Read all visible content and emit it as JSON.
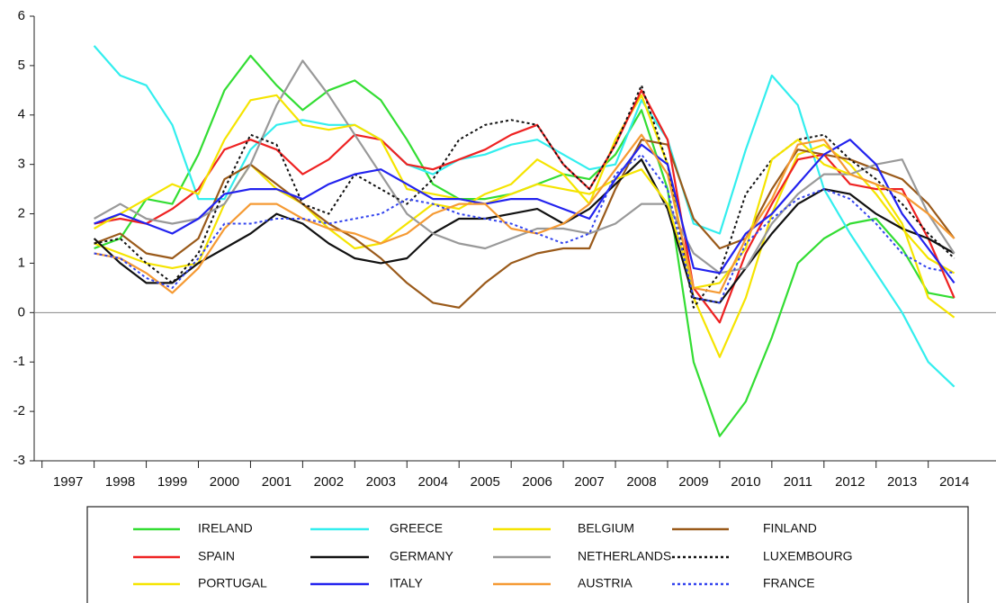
{
  "chart_data": {
    "type": "line",
    "x": [
      1998.0,
      1998.5,
      1999.0,
      1999.5,
      2000.0,
      2000.5,
      2001.0,
      2001.5,
      2002.0,
      2002.5,
      2003.0,
      2003.5,
      2004.0,
      2004.5,
      2005.0,
      2005.5,
      2006.0,
      2006.5,
      2007.0,
      2007.5,
      2008.0,
      2008.5,
      2009.0,
      2009.5,
      2010.0,
      2010.5,
      2011.0,
      2011.5,
      2012.0,
      2012.5,
      2013.0,
      2013.5,
      2014.0,
      2014.5
    ],
    "xlim": [
      1996.85,
      2015.3
    ],
    "xticks": [
      {
        "value": 1997,
        "label": "1997"
      },
      {
        "value": 1998,
        "label": "1998"
      },
      {
        "value": 1999,
        "label": "1999"
      },
      {
        "value": 2000,
        "label": "2000"
      },
      {
        "value": 2001,
        "label": "2001"
      },
      {
        "value": 2002,
        "label": "2002"
      },
      {
        "value": 2003,
        "label": "2003"
      },
      {
        "value": 2004,
        "label": "2004"
      },
      {
        "value": 2005,
        "label": "2005"
      },
      {
        "value": 2006,
        "label": "2006"
      },
      {
        "value": 2007,
        "label": "2007"
      },
      {
        "value": 2008,
        "label": "2008"
      },
      {
        "value": 2009,
        "label": "2009"
      },
      {
        "value": 2010,
        "label": "2010"
      },
      {
        "value": 2011,
        "label": "2011"
      },
      {
        "value": 2012,
        "label": "2012"
      },
      {
        "value": 2013,
        "label": "2013"
      },
      {
        "value": 2014,
        "label": "2014"
      }
    ],
    "ylim": [
      -3,
      6
    ],
    "yticks": [
      -3,
      -2,
      -1,
      0,
      1,
      2,
      3,
      4,
      5,
      6
    ],
    "series": [
      {
        "name": "IRELAND",
        "color": "#33dd33",
        "values": [
          1.3,
          1.5,
          2.3,
          2.2,
          3.2,
          4.5,
          5.2,
          4.6,
          4.1,
          4.5,
          4.7,
          4.3,
          3.5,
          2.6,
          2.3,
          2.3,
          2.4,
          2.6,
          2.8,
          2.7,
          3.2,
          4.1,
          2.5,
          -1.0,
          -2.5,
          -1.8,
          -0.5,
          1.0,
          1.5,
          1.8,
          1.9,
          1.3,
          0.4,
          0.3
        ]
      },
      {
        "name": "GREECE",
        "color": "#33eeee",
        "values": [
          5.4,
          4.8,
          4.6,
          3.8,
          2.3,
          2.3,
          3.3,
          3.8,
          3.9,
          3.8,
          3.8,
          3.5,
          3.0,
          2.8,
          3.1,
          3.2,
          3.4,
          3.5,
          3.2,
          2.9,
          3.0,
          4.3,
          3.5,
          1.8,
          1.6,
          3.3,
          4.8,
          4.2,
          2.5,
          1.6,
          0.8,
          0.0,
          -1.0,
          -1.5
        ]
      },
      {
        "name": "BELGIUM",
        "color": "#f5e400",
        "values": [
          1.4,
          1.2,
          1.0,
          0.9,
          1.0,
          2.2,
          3.0,
          2.5,
          2.2,
          1.7,
          1.3,
          1.4,
          1.8,
          2.2,
          2.1,
          2.4,
          2.6,
          3.1,
          2.8,
          2.2,
          3.5,
          4.4,
          3.0,
          0.3,
          -0.9,
          0.3,
          2.0,
          3.2,
          3.4,
          3.0,
          2.4,
          1.7,
          1.1,
          0.8
        ]
      },
      {
        "name": "FINLAND",
        "color": "#9a5a1a",
        "values": [
          1.4,
          1.6,
          1.2,
          1.1,
          1.5,
          2.7,
          3.0,
          2.6,
          2.2,
          1.8,
          1.5,
          1.1,
          0.6,
          0.2,
          0.1,
          0.6,
          1.0,
          1.2,
          1.3,
          1.3,
          2.5,
          3.5,
          3.4,
          1.9,
          1.3,
          1.5,
          2.5,
          3.3,
          3.2,
          3.1,
          2.9,
          2.7,
          2.2,
          1.5
        ]
      },
      {
        "name": "SPAIN",
        "color": "#ee2222",
        "values": [
          1.8,
          1.9,
          1.8,
          2.1,
          2.5,
          3.3,
          3.5,
          3.3,
          2.8,
          3.1,
          3.6,
          3.5,
          3.0,
          2.9,
          3.1,
          3.3,
          3.6,
          3.8,
          3.0,
          2.5,
          3.4,
          4.5,
          3.5,
          0.5,
          -0.2,
          1.2,
          2.2,
          3.1,
          3.2,
          2.6,
          2.5,
          2.5,
          1.5,
          0.3
        ]
      },
      {
        "name": "GERMANY",
        "color": "#111111",
        "values": [
          1.5,
          1.0,
          0.6,
          0.6,
          1.0,
          1.3,
          1.6,
          2.0,
          1.8,
          1.4,
          1.1,
          1.0,
          1.1,
          1.6,
          1.9,
          1.9,
          2.0,
          2.1,
          1.8,
          2.1,
          2.6,
          3.1,
          2.1,
          0.3,
          0.2,
          0.9,
          1.6,
          2.2,
          2.5,
          2.4,
          2.0,
          1.7,
          1.5,
          1.2
        ]
      },
      {
        "name": "NETHERLANDS",
        "color": "#999999",
        "values": [
          1.9,
          2.2,
          1.9,
          1.8,
          1.9,
          2.2,
          3.0,
          4.2,
          5.1,
          4.4,
          3.6,
          2.8,
          2.0,
          1.6,
          1.4,
          1.3,
          1.5,
          1.7,
          1.7,
          1.6,
          1.8,
          2.2,
          2.2,
          1.2,
          0.8,
          0.9,
          1.8,
          2.4,
          2.8,
          2.8,
          3.0,
          3.1,
          2.0,
          1.2
        ]
      },
      {
        "name": "LUXEMBOURG",
        "color": "#111111",
        "dashed": true,
        "values": [
          1.4,
          1.5,
          1.0,
          0.6,
          1.2,
          2.5,
          3.6,
          3.4,
          2.2,
          2.0,
          2.8,
          2.5,
          2.2,
          2.7,
          3.5,
          3.8,
          3.9,
          3.8,
          3.0,
          2.5,
          3.4,
          4.6,
          3.0,
          0.1,
          0.8,
          2.4,
          3.1,
          3.5,
          3.6,
          3.1,
          2.7,
          2.2,
          1.6,
          1.1
        ]
      },
      {
        "name": "PORTUGAL",
        "color": "#f5e400",
        "values": [
          1.7,
          2.0,
          2.3,
          2.6,
          2.4,
          3.5,
          4.3,
          4.4,
          3.8,
          3.7,
          3.8,
          3.5,
          2.5,
          2.4,
          2.3,
          2.2,
          2.4,
          2.6,
          2.5,
          2.4,
          2.7,
          2.9,
          2.2,
          0.5,
          0.6,
          1.3,
          3.1,
          3.5,
          3.0,
          2.8,
          2.6,
          1.8,
          0.3,
          -0.1
        ]
      },
      {
        "name": "ITALY",
        "color": "#2222ee",
        "values": [
          1.8,
          2.0,
          1.8,
          1.6,
          1.9,
          2.4,
          2.5,
          2.5,
          2.3,
          2.6,
          2.8,
          2.9,
          2.6,
          2.3,
          2.3,
          2.2,
          2.3,
          2.3,
          2.1,
          1.9,
          2.7,
          3.4,
          3.0,
          0.9,
          0.8,
          1.6,
          2.0,
          2.6,
          3.2,
          3.5,
          3.0,
          2.0,
          1.3,
          0.6
        ]
      },
      {
        "name": "AUSTRIA",
        "color": "#f59a33",
        "values": [
          1.2,
          1.1,
          0.8,
          0.4,
          0.9,
          1.7,
          2.2,
          2.2,
          1.9,
          1.7,
          1.6,
          1.4,
          1.6,
          2.0,
          2.2,
          2.2,
          1.7,
          1.6,
          1.8,
          2.2,
          2.9,
          3.6,
          2.8,
          0.5,
          0.4,
          1.5,
          2.3,
          3.4,
          3.5,
          2.8,
          2.6,
          2.4,
          2.0,
          1.5
        ]
      },
      {
        "name": "FRANCE",
        "color": "#3344ee",
        "dashed": true,
        "values": [
          1.2,
          1.1,
          0.7,
          0.5,
          1.1,
          1.8,
          1.8,
          1.9,
          1.9,
          1.8,
          1.9,
          2.0,
          2.3,
          2.2,
          2.0,
          1.9,
          1.8,
          1.6,
          1.4,
          1.6,
          2.8,
          3.2,
          2.5,
          0.3,
          0.2,
          1.4,
          1.9,
          2.3,
          2.5,
          2.3,
          1.8,
          1.2,
          0.9,
          0.8
        ]
      }
    ]
  }
}
